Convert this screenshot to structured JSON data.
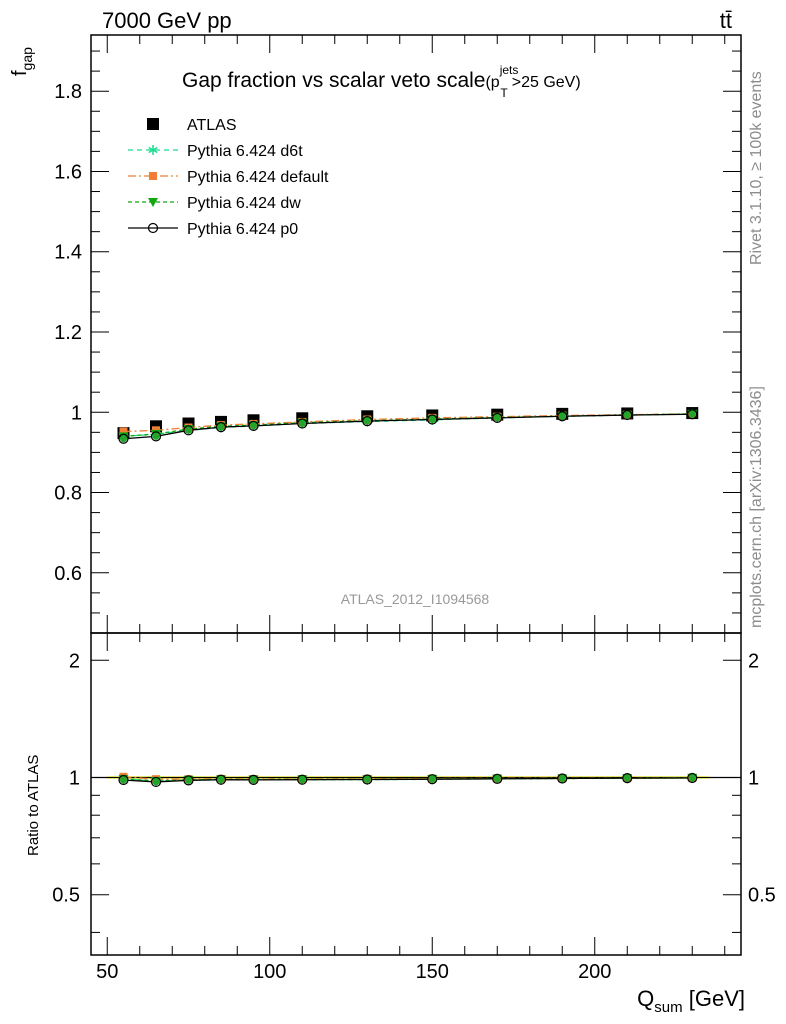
{
  "header": {
    "energy_label": "7000 GeV pp",
    "process_label": "tt̄"
  },
  "side_labels": {
    "rivet": "Rivet 3.1.10, ≥ 100k events",
    "mcplots": "mcplots.cern.ch [arXiv:1306.3436]"
  },
  "chart_data": {
    "type": "line",
    "title_main": "Gap fraction vs scalar veto scale",
    "title_suffix_a": "(p",
    "title_sup": "jets",
    "title_sub": "T",
    "title_suffix_b": ">25 GeV)",
    "analysis_label": "ATLAS_2012_I1094568",
    "ylabel_main": "f",
    "ylabel_main_sub": "gap",
    "ylabel_ratio": "Ratio to ATLAS",
    "xlabel": "Q",
    "xlabel_sub": "sum",
    "xlabel_unit": " [GeV]",
    "xlim": [
      45,
      245
    ],
    "ylim_main": [
      0.45,
      1.94
    ],
    "ylim_ratio": [
      0.35,
      2.35
    ],
    "ratio_log_scale": true,
    "x_ticks": [
      50,
      100,
      150,
      200
    ],
    "y_ticks_main": [
      0.6,
      0.8,
      1,
      1.2,
      1.4,
      1.6,
      1.8
    ],
    "y_ticks_ratio": [
      0.5,
      1,
      2
    ],
    "x": [
      55,
      65,
      75,
      85,
      95,
      110,
      130,
      150,
      170,
      190,
      210,
      230
    ],
    "reference": {
      "name": "ATLAS",
      "values": [
        0.948,
        0.965,
        0.972,
        0.976,
        0.98,
        0.985,
        0.99,
        0.992,
        0.994,
        0.996,
        0.997,
        0.998
      ],
      "color": "#000000"
    },
    "series": [
      {
        "name": "Pythia 6.424 d6t",
        "values": [
          0.94,
          0.945,
          0.955,
          0.962,
          0.966,
          0.972,
          0.977,
          0.981,
          0.986,
          0.99,
          0.993,
          0.996
        ],
        "ratio": [
          0.991,
          0.979,
          0.983,
          0.986,
          0.986,
          0.987,
          0.987,
          0.989,
          0.992,
          0.994,
          0.996,
          0.998
        ],
        "color": "#1adb8f",
        "marker": "star",
        "dash": "5,4"
      },
      {
        "name": "Pythia 6.424 default",
        "values": [
          0.952,
          0.955,
          0.962,
          0.968,
          0.971,
          0.976,
          0.982,
          0.986,
          0.989,
          0.992,
          0.994,
          0.996
        ],
        "ratio": [
          1.004,
          0.99,
          0.99,
          0.992,
          0.991,
          0.991,
          0.992,
          0.994,
          0.995,
          0.996,
          0.997,
          0.998
        ],
        "color": "#f07f35",
        "marker": "square",
        "dash": "8,3,2,3"
      },
      {
        "name": "Pythia 6.424 dw",
        "values": [
          0.94,
          0.946,
          0.958,
          0.965,
          0.968,
          0.974,
          0.979,
          0.983,
          0.987,
          0.99,
          0.993,
          0.996
        ],
        "ratio": [
          0.992,
          0.98,
          0.986,
          0.989,
          0.988,
          0.989,
          0.989,
          0.991,
          0.993,
          0.994,
          0.996,
          0.998
        ],
        "color": "#11a80f",
        "marker": "triangle-down",
        "dash": "4,3"
      },
      {
        "name": "Pythia 6.424 p0",
        "values": [
          0.934,
          0.94,
          0.955,
          0.963,
          0.966,
          0.972,
          0.978,
          0.982,
          0.986,
          0.99,
          0.993,
          0.995
        ],
        "ratio": [
          0.985,
          0.974,
          0.983,
          0.987,
          0.986,
          0.987,
          0.988,
          0.99,
          0.992,
          0.994,
          0.996,
          0.997
        ],
        "color": "#000000",
        "marker": "circle-open",
        "dash": ""
      }
    ],
    "reference_band_color": "#ffff66"
  }
}
